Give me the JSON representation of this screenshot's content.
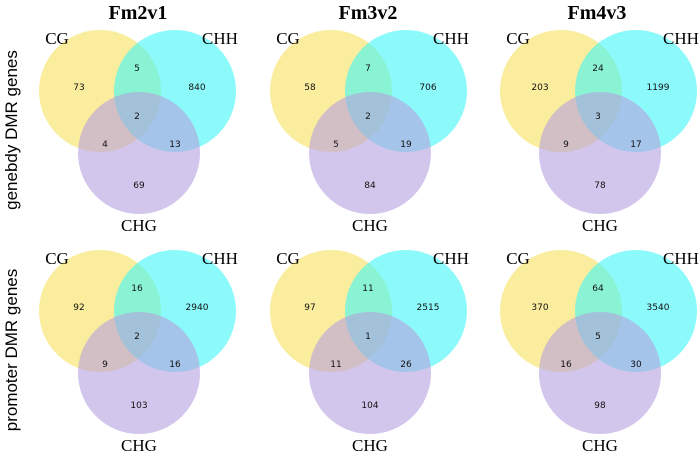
{
  "columns": [
    "Fm2v1",
    "Fm3v2",
    "Fm4v3"
  ],
  "rows": [
    "genebdy DMR genes",
    "promoter DMR genes"
  ],
  "set_labels": {
    "a": "CG",
    "b": "CHH",
    "c": "CHG"
  },
  "colors": {
    "CG": "#f7e15c",
    "CHH": "#3ff7f7",
    "CHG": "#b6a0e0"
  },
  "diagrams": [
    {
      "row": 0,
      "col": 0,
      "counts": {
        "only_a": "73",
        "a_b": "5",
        "only_b": "840",
        "abc": "2",
        "a_c": "4",
        "b_c": "13",
        "only_c": "69"
      }
    },
    {
      "row": 0,
      "col": 1,
      "counts": {
        "only_a": "58",
        "a_b": "7",
        "only_b": "706",
        "abc": "2",
        "a_c": "5",
        "b_c": "19",
        "only_c": "84"
      }
    },
    {
      "row": 0,
      "col": 2,
      "counts": {
        "only_a": "203",
        "a_b": "24",
        "only_b": "1199",
        "abc": "3",
        "a_c": "9",
        "b_c": "17",
        "only_c": "78"
      }
    },
    {
      "row": 1,
      "col": 0,
      "counts": {
        "only_a": "92",
        "a_b": "16",
        "only_b": "2940",
        "abc": "2",
        "a_c": "9",
        "b_c": "16",
        "only_c": "103"
      }
    },
    {
      "row": 1,
      "col": 1,
      "counts": {
        "only_a": "97",
        "a_b": "11",
        "only_b": "2515",
        "abc": "1",
        "a_c": "11",
        "b_c": "26",
        "only_c": "104"
      }
    },
    {
      "row": 1,
      "col": 2,
      "counts": {
        "only_a": "370",
        "a_b": "64",
        "only_b": "3540",
        "abc": "5",
        "a_c": "16",
        "b_c": "30",
        "only_c": "98"
      }
    }
  ]
}
